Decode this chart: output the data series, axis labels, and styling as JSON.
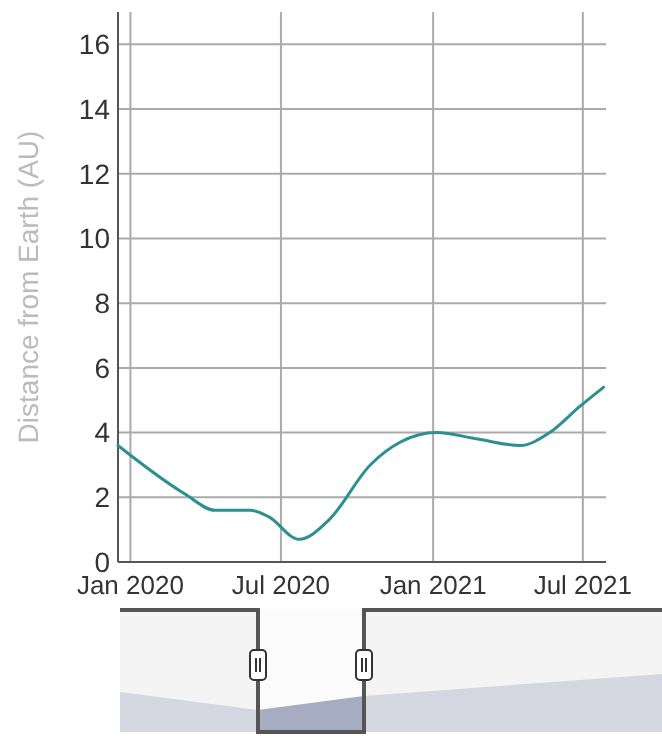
{
  "chart_data": {
    "type": "line",
    "ylabel": "Distance from Earth (AU)",
    "x": [
      "2019-12-17",
      "2020-03-07",
      "2020-04-12",
      "2020-05-25",
      "2020-06-16",
      "2020-07-23",
      "2020-08-28",
      "2020-10-17",
      "2020-11-22",
      "2021-01-05",
      "2021-02-24",
      "2021-04-16",
      "2021-05-22",
      "2021-06-27",
      "2021-07-26"
    ],
    "series": [
      {
        "color": "#2b908f",
        "values": [
          3.6,
          2.1,
          1.6,
          1.6,
          1.4,
          0.7,
          1.3,
          3.0,
          3.7,
          4.0,
          3.8,
          3.6,
          4.0,
          4.8,
          5.4
        ]
      }
    ],
    "xlim": [
      "2019-12-17",
      "2021-07-29"
    ],
    "xticks": [
      {
        "value": "2020-01-01",
        "label": "Jan 2020"
      },
      {
        "value": "2020-07-01",
        "label": "Jul 2020"
      },
      {
        "value": "2021-01-01",
        "label": "Jan 2021"
      },
      {
        "value": "2021-07-01",
        "label": "Jul 2021"
      }
    ],
    "ylim": [
      0,
      17
    ],
    "yticks": [
      0,
      2,
      4,
      6,
      8,
      10,
      12,
      14,
      16
    ],
    "grid": true,
    "marker": "none",
    "line_style": "solid"
  }
}
